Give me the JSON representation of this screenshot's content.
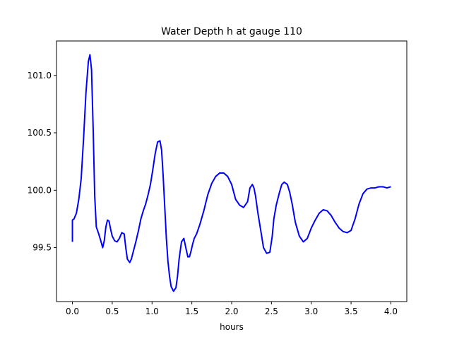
{
  "chart_data": {
    "type": "line",
    "title": "Water Depth h at gauge 110",
    "xlabel": "hours",
    "ylabel": "",
    "xlim": [
      -0.2,
      4.2
    ],
    "ylim": [
      99.03,
      101.3
    ],
    "xticks": [
      0.0,
      0.5,
      1.0,
      1.5,
      2.0,
      2.5,
      3.0,
      3.5,
      4.0
    ],
    "xtick_labels": [
      "0.0",
      "0.5",
      "1.0",
      "1.5",
      "2.0",
      "2.5",
      "3.0",
      "3.5",
      "4.0"
    ],
    "yticks": [
      99.5,
      100.0,
      100.5,
      101.0
    ],
    "ytick_labels": [
      "99.5",
      "100.0",
      "100.5",
      "101.0"
    ],
    "grid": false,
    "series": [
      {
        "color": "#0000ff",
        "x": [
          0.0,
          0.0,
          0.02,
          0.05,
          0.08,
          0.11,
          0.14,
          0.17,
          0.2,
          0.22,
          0.24,
          0.26,
          0.28,
          0.3,
          0.33,
          0.36,
          0.38,
          0.4,
          0.42,
          0.44,
          0.46,
          0.48,
          0.5,
          0.53,
          0.56,
          0.59,
          0.62,
          0.65,
          0.67,
          0.69,
          0.72,
          0.74,
          0.77,
          0.8,
          0.83,
          0.86,
          0.89,
          0.92,
          0.95,
          0.98,
          1.01,
          1.04,
          1.07,
          1.1,
          1.12,
          1.14,
          1.16,
          1.18,
          1.2,
          1.22,
          1.24,
          1.27,
          1.3,
          1.32,
          1.34,
          1.37,
          1.4,
          1.43,
          1.45,
          1.47,
          1.49,
          1.51,
          1.53,
          1.56,
          1.6,
          1.65,
          1.7,
          1.75,
          1.8,
          1.85,
          1.9,
          1.95,
          2.0,
          2.05,
          2.1,
          2.15,
          2.2,
          2.23,
          2.26,
          2.28,
          2.3,
          2.33,
          2.37,
          2.4,
          2.44,
          2.48,
          2.51,
          2.53,
          2.56,
          2.6,
          2.63,
          2.66,
          2.7,
          2.73,
          2.76,
          2.8,
          2.85,
          2.9,
          2.95,
          3.0,
          3.05,
          3.1,
          3.15,
          3.2,
          3.25,
          3.3,
          3.35,
          3.4,
          3.45,
          3.5,
          3.55,
          3.6,
          3.65,
          3.7,
          3.75,
          3.8,
          3.85,
          3.9,
          3.95,
          4.0
        ],
        "y": [
          99.55,
          99.74,
          99.75,
          99.8,
          99.92,
          100.1,
          100.45,
          100.85,
          101.12,
          101.18,
          101.05,
          100.55,
          99.95,
          99.68,
          99.62,
          99.55,
          99.5,
          99.56,
          99.68,
          99.74,
          99.73,
          99.66,
          99.6,
          99.56,
          99.55,
          99.58,
          99.63,
          99.62,
          99.5,
          99.4,
          99.37,
          99.4,
          99.48,
          99.56,
          99.65,
          99.75,
          99.82,
          99.88,
          99.96,
          100.05,
          100.18,
          100.32,
          100.42,
          100.43,
          100.35,
          100.12,
          99.85,
          99.58,
          99.38,
          99.25,
          99.16,
          99.12,
          99.15,
          99.25,
          99.4,
          99.55,
          99.58,
          99.48,
          99.42,
          99.42,
          99.47,
          99.53,
          99.58,
          99.62,
          99.7,
          99.82,
          99.96,
          100.06,
          100.12,
          100.15,
          100.15,
          100.12,
          100.05,
          99.92,
          99.87,
          99.85,
          99.9,
          100.02,
          100.05,
          100.02,
          99.95,
          99.8,
          99.63,
          99.5,
          99.45,
          99.46,
          99.6,
          99.75,
          99.87,
          99.98,
          100.05,
          100.07,
          100.05,
          99.98,
          99.88,
          99.72,
          99.6,
          99.55,
          99.58,
          99.67,
          99.74,
          99.8,
          99.83,
          99.82,
          99.78,
          99.72,
          99.67,
          99.64,
          99.63,
          99.65,
          99.75,
          99.88,
          99.97,
          100.01,
          100.02,
          100.02,
          100.03,
          100.03,
          100.02,
          100.03
        ]
      }
    ]
  }
}
